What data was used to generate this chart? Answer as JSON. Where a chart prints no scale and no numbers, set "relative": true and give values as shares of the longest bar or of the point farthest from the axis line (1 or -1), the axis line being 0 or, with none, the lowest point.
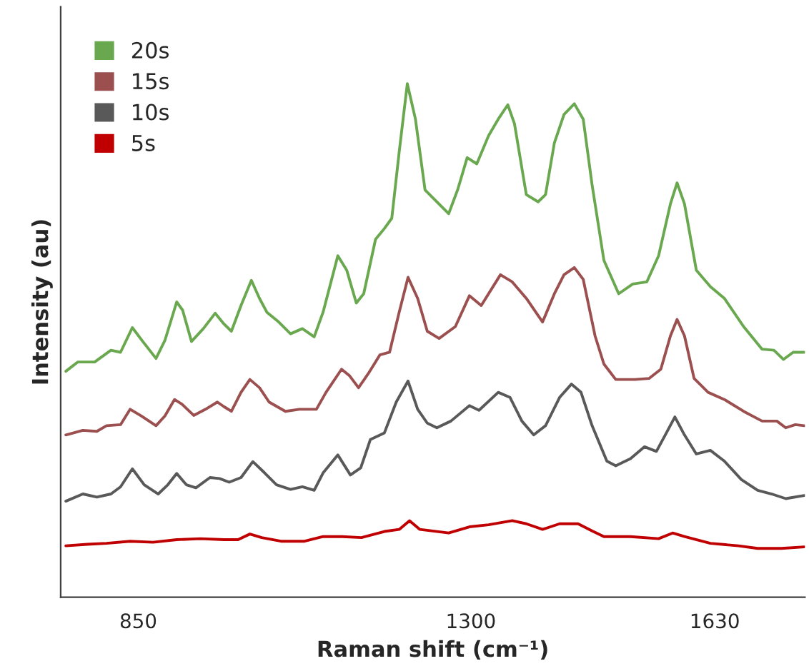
{
  "chart_data": {
    "type": "line",
    "xlabel": "Raman shift (cm⁻¹)",
    "ylabel": "Intensity (au)",
    "relative": true,
    "xlim": [
      745,
      1752
    ],
    "xticks": [
      850,
      1300,
      1630
    ],
    "grid": false,
    "legend": "top left",
    "marker": "none",
    "line_style": "solid",
    "series": [
      {
        "name": "20s",
        "color": "#6aa84f",
        "x": [
          752,
          768,
          791,
          813,
          826,
          842,
          855,
          874,
          886,
          902,
          910,
          922,
          938,
          954,
          966,
          976,
          989,
          1003,
          1014,
          1024,
          1040,
          1056,
          1072,
          1088,
          1100,
          1120,
          1132,
          1145,
          1155,
          1171,
          1183,
          1193,
          1203,
          1214,
          1225,
          1238,
          1270,
          1282,
          1295,
          1308,
          1324,
          1337,
          1350,
          1359,
          1375,
          1391,
          1401,
          1413,
          1426,
          1440,
          1452,
          1464,
          1480,
          1500,
          1519,
          1538,
          1554,
          1570,
          1579,
          1589,
          1605,
          1624,
          1643,
          1669,
          1694,
          1710,
          1723,
          1736,
          1751
        ],
        "values": [
          0.44,
          0.458,
          0.458,
          0.481,
          0.477,
          0.525,
          0.5,
          0.465,
          0.5,
          0.575,
          0.559,
          0.498,
          0.523,
          0.553,
          0.532,
          0.518,
          0.568,
          0.617,
          0.582,
          0.555,
          0.536,
          0.513,
          0.523,
          0.507,
          0.555,
          0.665,
          0.637,
          0.573,
          0.591,
          0.697,
          0.718,
          0.738,
          0.867,
          1.0,
          0.931,
          0.793,
          0.747,
          0.793,
          0.856,
          0.844,
          0.899,
          0.931,
          0.959,
          0.922,
          0.784,
          0.77,
          0.784,
          0.885,
          0.94,
          0.961,
          0.931,
          0.803,
          0.656,
          0.591,
          0.61,
          0.614,
          0.665,
          0.766,
          0.807,
          0.766,
          0.637,
          0.605,
          0.582,
          0.527,
          0.483,
          0.481,
          0.463,
          0.477,
          0.477
        ]
      },
      {
        "name": "15s",
        "color": "#9b4f4f",
        "x": [
          752,
          775,
          794,
          807,
          826,
          839,
          854,
          874,
          886,
          899,
          909,
          925,
          941,
          957,
          966,
          976,
          989,
          1001,
          1014,
          1027,
          1049,
          1068,
          1091,
          1104,
          1125,
          1136,
          1148,
          1161,
          1177,
          1190,
          1203,
          1215,
          1228,
          1241,
          1257,
          1279,
          1298,
          1314,
          1340,
          1356,
          1375,
          1397,
          1413,
          1426,
          1440,
          1452,
          1468,
          1480,
          1496,
          1522,
          1541,
          1557,
          1570,
          1579,
          1589,
          1602,
          1621,
          1643,
          1669,
          1694,
          1714,
          1726,
          1739,
          1751
        ],
        "values": [
          0.316,
          0.325,
          0.323,
          0.334,
          0.336,
          0.366,
          0.353,
          0.334,
          0.353,
          0.385,
          0.376,
          0.354,
          0.366,
          0.38,
          0.371,
          0.362,
          0.399,
          0.424,
          0.408,
          0.38,
          0.362,
          0.366,
          0.366,
          0.399,
          0.444,
          0.431,
          0.408,
          0.435,
          0.472,
          0.477,
          0.555,
          0.623,
          0.582,
          0.518,
          0.504,
          0.527,
          0.587,
          0.568,
          0.628,
          0.614,
          0.582,
          0.536,
          0.591,
          0.628,
          0.642,
          0.619,
          0.509,
          0.454,
          0.424,
          0.424,
          0.426,
          0.444,
          0.509,
          0.541,
          0.509,
          0.426,
          0.399,
          0.385,
          0.362,
          0.343,
          0.343,
          0.33,
          0.336,
          0.334
        ]
      },
      {
        "name": "10s",
        "color": "#595959",
        "x": [
          752,
          775,
          794,
          813,
          826,
          842,
          858,
          877,
          890,
          902,
          915,
          928,
          947,
          960,
          973,
          989,
          1005,
          1021,
          1037,
          1056,
          1072,
          1088,
          1100,
          1120,
          1137,
          1151,
          1164,
          1183,
          1199,
          1215,
          1228,
          1241,
          1254,
          1273,
          1298,
          1311,
          1337,
          1353,
          1369,
          1385,
          1401,
          1420,
          1436,
          1449,
          1464,
          1484,
          1496,
          1516,
          1535,
          1551,
          1563,
          1576,
          1589,
          1605,
          1624,
          1643,
          1666,
          1688,
          1707,
          1726,
          1751
        ],
        "values": [
          0.187,
          0.201,
          0.195,
          0.201,
          0.215,
          0.25,
          0.219,
          0.201,
          0.219,
          0.241,
          0.219,
          0.213,
          0.233,
          0.231,
          0.224,
          0.233,
          0.264,
          0.242,
          0.219,
          0.21,
          0.215,
          0.208,
          0.242,
          0.277,
          0.238,
          0.252,
          0.307,
          0.32,
          0.38,
          0.421,
          0.366,
          0.339,
          0.33,
          0.343,
          0.373,
          0.364,
          0.399,
          0.389,
          0.343,
          0.316,
          0.334,
          0.389,
          0.415,
          0.399,
          0.334,
          0.265,
          0.256,
          0.27,
          0.293,
          0.284,
          0.316,
          0.351,
          0.316,
          0.279,
          0.286,
          0.265,
          0.229,
          0.208,
          0.201,
          0.192,
          0.198
        ]
      },
      {
        "name": "5s",
        "color": "#c00000",
        "x": [
          752,
          781,
          807,
          839,
          870,
          902,
          934,
          966,
          985,
          1001,
          1017,
          1043,
          1075,
          1100,
          1126,
          1152,
          1183,
          1203,
          1217,
          1231,
          1270,
          1298,
          1324,
          1356,
          1375,
          1397,
          1420,
          1445,
          1464,
          1480,
          1516,
          1554,
          1573,
          1589,
          1624,
          1662,
          1688,
          1720,
          1751
        ],
        "values": [
          0.1,
          0.103,
          0.105,
          0.109,
          0.107,
          0.112,
          0.114,
          0.112,
          0.112,
          0.123,
          0.116,
          0.109,
          0.109,
          0.118,
          0.118,
          0.116,
          0.128,
          0.132,
          0.149,
          0.132,
          0.125,
          0.137,
          0.141,
          0.149,
          0.143,
          0.132,
          0.143,
          0.143,
          0.129,
          0.118,
          0.118,
          0.114,
          0.125,
          0.118,
          0.105,
          0.1,
          0.095,
          0.095,
          0.098
        ]
      }
    ]
  }
}
